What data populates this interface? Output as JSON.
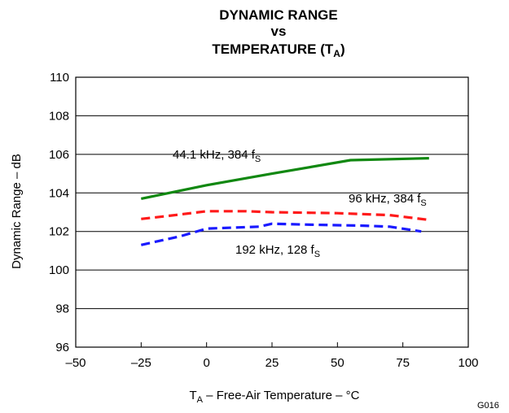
{
  "chart_data": {
    "type": "line",
    "title": {
      "line1": "DYNAMIC RANGE",
      "line2": "vs",
      "line3_main": "TEMPERATURE (T",
      "line3_sub": "A",
      "line3_end": ")"
    },
    "xlabel": {
      "pre": "T",
      "sub": "A",
      "post": " – Free-Air Temperature – °C"
    },
    "ylabel": "Dynamic Range – dB",
    "xlim": [
      -50,
      100
    ],
    "ylim": [
      96,
      110
    ],
    "xticks": [
      -50,
      -25,
      0,
      25,
      50,
      75,
      100
    ],
    "xtick_labels": [
      "–50",
      "–25",
      "0",
      "25",
      "50",
      "75",
      "100"
    ],
    "yticks": [
      96,
      98,
      100,
      102,
      104,
      106,
      108,
      110
    ],
    "ytick_labels": [
      "96",
      "98",
      "100",
      "102",
      "104",
      "106",
      "108",
      "110"
    ],
    "grid": true,
    "series": [
      {
        "name": "44.1 kHz, 384 fS",
        "color": "#118811",
        "style": "solid",
        "x": [
          -25,
          0,
          25,
          55,
          85
        ],
        "y": [
          103.7,
          104.4,
          105.0,
          105.7,
          105.8
        ]
      },
      {
        "name": "96 kHz, 384 fS",
        "color": "#ff1a1a",
        "style": "dashed",
        "x": [
          -25,
          -15,
          0,
          15,
          25,
          50,
          70,
          85
        ],
        "y": [
          102.65,
          102.8,
          103.05,
          103.05,
          103.0,
          102.95,
          102.85,
          102.6
        ]
      },
      {
        "name": "192 kHz, 128 fS",
        "color": "#1a1aff",
        "style": "dashed",
        "x": [
          -25,
          -10,
          0,
          20,
          25,
          40,
          60,
          70,
          82
        ],
        "y": [
          101.3,
          101.75,
          102.15,
          102.25,
          102.4,
          102.35,
          102.3,
          102.25,
          102.0
        ]
      }
    ],
    "annotations": [
      {
        "series": 0,
        "pre": "44.1 kHz, 384 f",
        "sub": "S"
      },
      {
        "series": 1,
        "pre": "96 kHz, 384 f",
        "sub": "S"
      },
      {
        "series": 2,
        "pre": "192 kHz, 128 f",
        "sub": "S"
      }
    ],
    "figure_code": "G016"
  }
}
